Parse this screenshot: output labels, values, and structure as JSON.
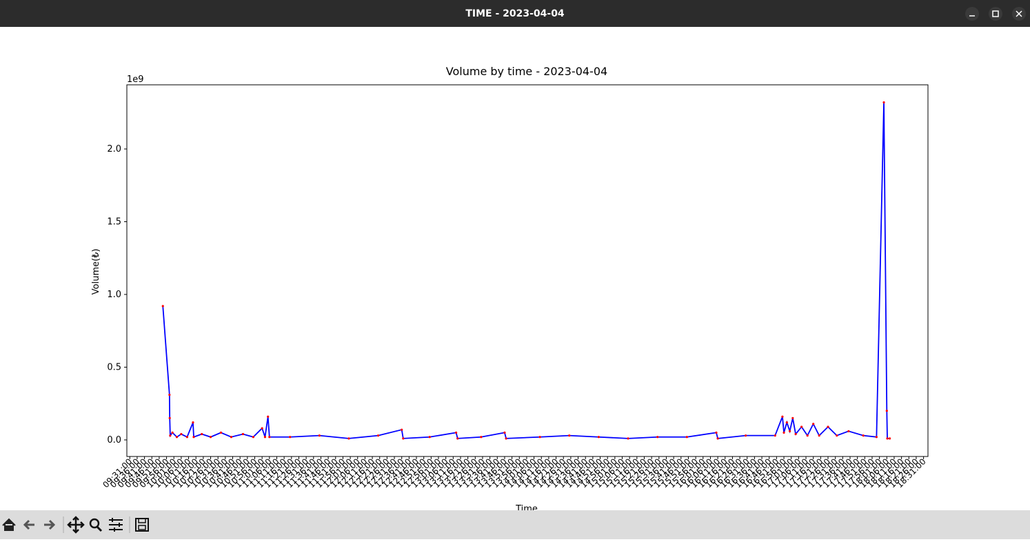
{
  "window": {
    "title": "TIME - 2023-04-04"
  },
  "chart_data": {
    "type": "line",
    "title": "Volume by time - 2023-04-04",
    "x_label": "Time",
    "y_label": "Volume(₺)",
    "offset_label": "1e9",
    "color": "#0000ff",
    "marker_color": "#ff0000",
    "x": [
      "09:53:30",
      "09:58:00",
      "09:58:10",
      "09:58:30",
      "10:00:00",
      "10:03:00",
      "10:06:00",
      "10:10:00",
      "10:14:00",
      "10:14:30",
      "10:20:00",
      "10:26:00",
      "10:33:00",
      "10:40:00",
      "10:48:00",
      "10:55:00",
      "11:01:00",
      "11:03:00",
      "11:05:00",
      "11:06:00",
      "11:20:00",
      "11:40:00",
      "12:00:00",
      "12:20:00",
      "12:36:00",
      "12:37:00",
      "12:55:00",
      "13:13:00",
      "13:14:00",
      "13:30:00",
      "13:46:00",
      "13:47:00",
      "14:10:00",
      "14:30:00",
      "14:50:00",
      "15:10:00",
      "15:30:00",
      "15:50:00",
      "16:10:00",
      "16:11:00",
      "16:30:00",
      "16:50:00",
      "16:55:00",
      "16:56:00",
      "16:58:00",
      "17:00:00",
      "17:02:00",
      "17:04:00",
      "17:08:00",
      "17:12:00",
      "17:16:00",
      "17:20:00",
      "17:26:00",
      "17:32:00",
      "17:40:00",
      "17:50:00",
      "17:59:00",
      "18:04:00",
      "18:06:00",
      "18:06:20",
      "18:08:00"
    ],
    "values": [
      0.92,
      0.31,
      0.15,
      0.03,
      0.05,
      0.02,
      0.04,
      0.02,
      0.12,
      0.02,
      0.04,
      0.02,
      0.05,
      0.02,
      0.04,
      0.02,
      0.08,
      0.02,
      0.16,
      0.02,
      0.02,
      0.03,
      0.01,
      0.03,
      0.07,
      0.01,
      0.02,
      0.05,
      0.01,
      0.02,
      0.05,
      0.01,
      0.02,
      0.03,
      0.02,
      0.01,
      0.02,
      0.02,
      0.05,
      0.01,
      0.03,
      0.03,
      0.16,
      0.05,
      0.12,
      0.06,
      0.15,
      0.04,
      0.09,
      0.03,
      0.11,
      0.03,
      0.09,
      0.03,
      0.06,
      0.03,
      0.02,
      2.32,
      0.2,
      0.01,
      0.01
    ],
    "xlim": [
      "09:29:00",
      "18:34:00"
    ],
    "xticks": [
      "09:31:00",
      "09:36:00",
      "09:41:00",
      "09:46:00",
      "09:51:00",
      "09:56:00",
      "10:01:00",
      "10:06:00",
      "10:11:00",
      "10:16:00",
      "10:21:00",
      "10:26:00",
      "10:31:00",
      "10:36:00",
      "10:41:00",
      "10:46:00",
      "10:51:00",
      "10:56:00",
      "11:01:00",
      "11:06:00",
      "11:11:00",
      "11:16:00",
      "11:21:00",
      "11:26:00",
      "11:31:00",
      "11:36:00",
      "11:41:00",
      "11:46:00",
      "11:51:00",
      "11:56:00",
      "12:01:00",
      "12:06:00",
      "12:11:00",
      "12:16:00",
      "12:21:00",
      "12:26:00",
      "12:31:00",
      "12:36:00",
      "12:41:00",
      "12:46:00",
      "12:51:00",
      "12:56:00",
      "13:01:00",
      "13:06:00",
      "13:11:00",
      "13:16:00",
      "13:21:00",
      "13:26:00",
      "13:31:00",
      "13:36:00",
      "13:41:00",
      "13:46:00",
      "13:51:00",
      "13:56:00",
      "14:01:00",
      "14:06:00",
      "14:11:00",
      "14:16:00",
      "14:21:00",
      "14:26:00",
      "14:31:00",
      "14:36:00",
      "14:41:00",
      "14:46:00",
      "14:51:00",
      "14:56:00",
      "15:01:00",
      "15:06:00",
      "15:11:00",
      "15:16:00",
      "15:21:00",
      "15:26:00",
      "15:31:00",
      "15:36:00",
      "15:41:00",
      "15:46:00",
      "15:51:00",
      "15:56:00",
      "16:01:00",
      "16:06:00",
      "16:11:00",
      "16:16:00",
      "16:21:00",
      "16:26:00",
      "16:31:00",
      "16:36:00",
      "16:41:00",
      "16:46:00",
      "16:51:00",
      "16:56:00",
      "17:01:00",
      "17:06:00",
      "17:11:00",
      "17:16:00",
      "17:21:00",
      "17:26:00",
      "17:31:00",
      "17:36:00",
      "17:41:00",
      "17:46:00",
      "17:51:00",
      "17:56:00",
      "18:01:00",
      "18:06:00",
      "18:11:00",
      "18:16:00",
      "18:21:00",
      "18:26:00",
      "18:31:00"
    ],
    "ylim": [
      -0.114,
      2.441
    ],
    "yticks": [
      {
        "value": 0,
        "label": "0.0"
      },
      {
        "value": 0.5,
        "label": "0.5"
      },
      {
        "value": 1,
        "label": "1.0"
      },
      {
        "value": 1.5,
        "label": "1.5"
      },
      {
        "value": 2,
        "label": "2.0"
      }
    ],
    "grid": false
  }
}
